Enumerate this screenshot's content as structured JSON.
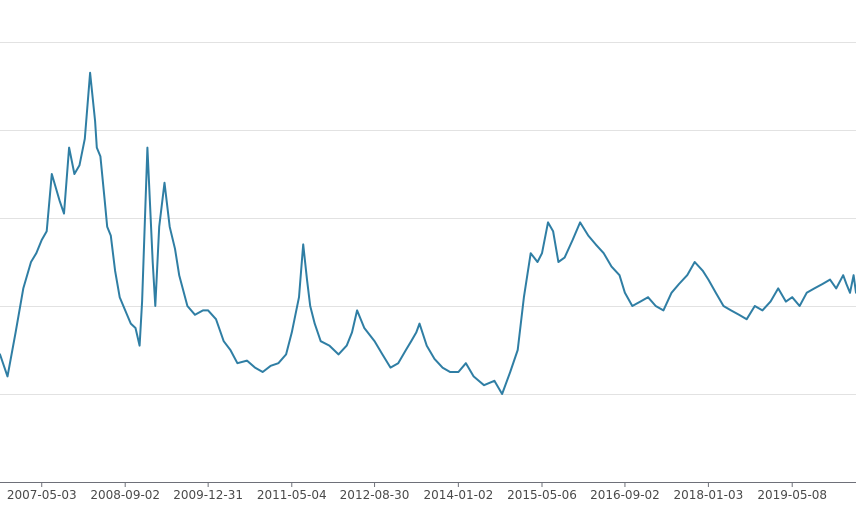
{
  "chart_data": {
    "type": "line",
    "title": "",
    "xlabel": "",
    "ylabel": "",
    "grid": true,
    "legend": "none",
    "x_tick_labels": [
      "2007-05-03",
      "2008-09-02",
      "2009-12-31",
      "2011-05-04",
      "2012-08-30",
      "2014-01-02",
      "2015-05-06",
      "2016-09-02",
      "2018-01-03",
      "2019-05-08"
    ],
    "x_range": [
      "2006-09-01",
      "2020-05-15"
    ],
    "ylim": [
      0,
      5
    ],
    "y_gridlines": [
      1,
      2,
      3,
      4,
      5
    ],
    "colors": {
      "line": "#2f7ea4",
      "grid": "#e2e2e2",
      "axis": "#6e7079"
    },
    "series": [
      {
        "x": [
          "2006-09-01",
          "2006-10-15",
          "2006-12-01",
          "2007-01-15",
          "2007-03-01",
          "2007-04-01",
          "2007-05-03",
          "2007-06-01",
          "2007-07-01",
          "2007-08-15",
          "2007-09-10",
          "2007-10-10",
          "2007-11-10",
          "2007-12-10",
          "2008-01-10",
          "2008-02-10",
          "2008-03-10",
          "2008-03-20",
          "2008-04-10",
          "2008-05-05",
          "2008-05-20",
          "2008-06-10",
          "2008-07-05",
          "2008-08-01",
          "2008-09-02",
          "2008-10-05",
          "2008-11-01",
          "2008-11-25",
          "2008-12-10",
          "2009-01-10",
          "2009-02-10",
          "2009-02-25",
          "2009-03-20",
          "2009-04-20",
          "2009-05-20",
          "2009-06-20",
          "2009-07-15",
          "2009-09-01",
          "2009-10-15",
          "2009-12-01",
          "2009-12-31",
          "2010-02-15",
          "2010-04-01",
          "2010-05-10",
          "2010-06-20",
          "2010-08-15",
          "2010-10-01",
          "2010-11-15",
          "2011-01-01",
          "2011-02-15",
          "2011-04-01",
          "2011-05-04",
          "2011-06-15",
          "2011-07-10",
          "2011-08-01",
          "2011-08-20",
          "2011-09-15",
          "2011-10-20",
          "2011-12-10",
          "2012-02-01",
          "2012-03-20",
          "2012-04-20",
          "2012-05-20",
          "2012-07-01",
          "2012-08-30",
          "2012-10-15",
          "2012-12-01",
          "2013-01-15",
          "2013-03-01",
          "2013-04-01",
          "2013-05-01",
          "2013-05-20",
          "2013-07-01",
          "2013-08-15",
          "2013-10-01",
          "2013-11-15",
          "2014-01-02",
          "2014-02-15",
          "2014-04-01",
          "2014-06-01",
          "2014-08-01",
          "2014-09-15",
          "2014-11-01",
          "2014-12-15",
          "2015-01-20",
          "2015-03-01",
          "2015-04-10",
          "2015-05-06",
          "2015-06-10",
          "2015-07-10",
          "2015-08-10",
          "2015-09-15",
          "2015-11-01",
          "2015-12-15",
          "2016-02-01",
          "2016-03-15",
          "2016-05-01",
          "2016-06-15",
          "2016-08-01",
          "2016-09-02",
          "2016-10-15",
          "2016-12-01",
          "2017-01-15",
          "2017-03-01",
          "2017-04-15",
          "2017-06-01",
          "2017-07-15",
          "2017-09-01",
          "2017-10-15",
          "2017-12-01",
          "2018-01-03",
          "2018-02-15",
          "2018-04-01",
          "2018-05-15",
          "2018-07-01",
          "2018-08-15",
          "2018-10-01",
          "2018-11-15",
          "2019-01-01",
          "2019-02-15",
          "2019-04-01",
          "2019-05-08",
          "2019-06-20",
          "2019-08-01",
          "2019-09-15",
          "2019-11-01",
          "2019-12-15",
          "2020-01-20",
          "2020-03-01",
          "2020-03-20",
          "2020-04-10",
          "2020-05-01",
          "2020-05-15"
        ],
        "y": [
          1.45,
          1.2,
          1.7,
          2.2,
          2.5,
          2.6,
          2.75,
          2.85,
          3.5,
          3.2,
          3.05,
          3.8,
          3.5,
          3.6,
          3.9,
          4.65,
          4.1,
          3.8,
          3.7,
          3.2,
          2.9,
          2.8,
          2.4,
          2.1,
          1.95,
          1.8,
          1.75,
          1.55,
          2.05,
          3.8,
          2.5,
          2.0,
          2.9,
          3.4,
          2.9,
          2.65,
          2.35,
          2.0,
          1.9,
          1.95,
          1.95,
          1.85,
          1.6,
          1.5,
          1.35,
          1.38,
          1.3,
          1.25,
          1.32,
          1.35,
          1.45,
          1.7,
          2.1,
          2.7,
          2.3,
          2.0,
          1.8,
          1.6,
          1.55,
          1.45,
          1.55,
          1.7,
          1.95,
          1.75,
          1.6,
          1.45,
          1.3,
          1.35,
          1.5,
          1.6,
          1.7,
          1.8,
          1.55,
          1.4,
          1.3,
          1.25,
          1.25,
          1.35,
          1.2,
          1.1,
          1.15,
          1.0,
          1.25,
          1.5,
          2.1,
          2.6,
          2.5,
          2.6,
          2.95,
          2.85,
          2.5,
          2.55,
          2.75,
          2.95,
          2.8,
          2.7,
          2.6,
          2.45,
          2.35,
          2.15,
          2.0,
          2.05,
          2.1,
          2.0,
          1.95,
          2.15,
          2.25,
          2.35,
          2.5,
          2.4,
          2.3,
          2.15,
          2.0,
          1.95,
          1.9,
          1.85,
          2.0,
          1.95,
          2.05,
          2.2,
          2.05,
          2.1,
          2.0,
          2.15,
          2.2,
          2.25,
          2.3,
          2.2,
          2.35,
          2.25,
          2.15,
          2.35,
          2.15
        ]
      }
    ]
  }
}
